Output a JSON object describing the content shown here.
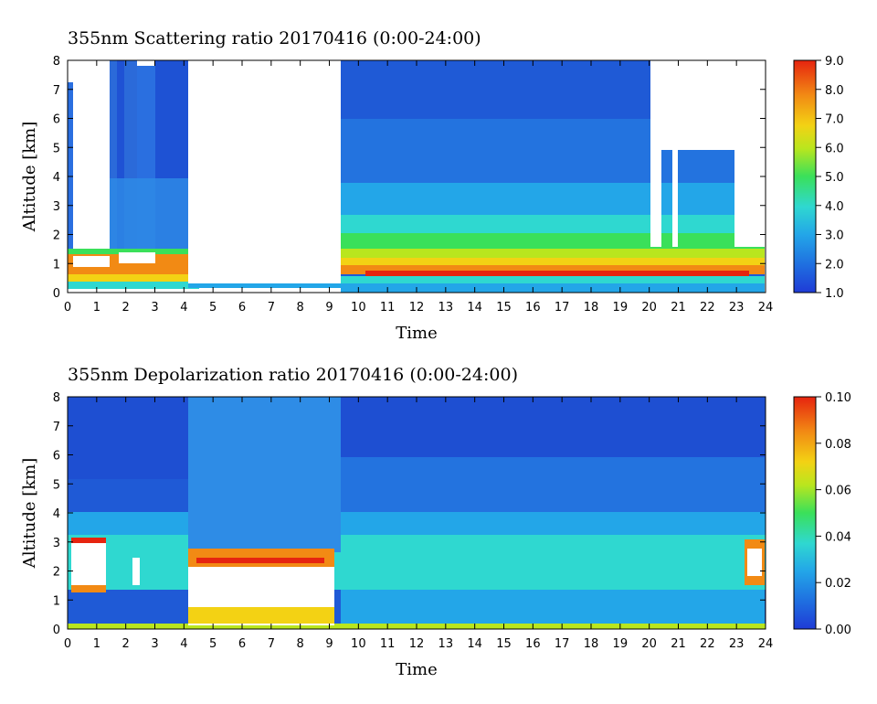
{
  "chart_data": [
    {
      "type": "heatmap",
      "title": "355nm Scattering ratio  20170416 (0:00-24:00)",
      "xlabel": "Time",
      "ylabel": "Altitude [km]",
      "xlim": [
        0,
        24
      ],
      "ylim": [
        0,
        8
      ],
      "x_ticks": [
        "0",
        "1",
        "2",
        "3",
        "4",
        "5",
        "6",
        "7",
        "8",
        "9",
        "10",
        "11",
        "12",
        "13",
        "14",
        "15",
        "16",
        "17",
        "18",
        "19",
        "20",
        "21",
        "22",
        "23",
        "24"
      ],
      "y_ticks": [
        "0",
        "1",
        "2",
        "3",
        "4",
        "5",
        "6",
        "7",
        "8"
      ],
      "colorbar": {
        "range": [
          1.0,
          9.0
        ],
        "ticks": [
          "1.0",
          "2.0",
          "3.0",
          "4.0",
          "5.0",
          "6.0",
          "7.0",
          "8.0",
          "9.0"
        ]
      },
      "no_data_periods_hours": [
        [
          0.2,
          1.4
        ],
        [
          4.4,
          9.3
        ]
      ],
      "features": {
        "boundary_layer_top_km_before_4h": 1.4,
        "boundary_layer_top_km_after_9h": 2.0,
        "clear_sky_regions_after_20h": [
          [
            20.1,
            23.5,
            5.2,
            8.0
          ]
        ]
      }
    },
    {
      "type": "heatmap",
      "title": "355nm Depolarization ratio  20170416 (0:00-24:00)",
      "xlabel": "Time",
      "ylabel": "Altitude [km]",
      "xlim": [
        0,
        24
      ],
      "ylim": [
        0,
        8
      ],
      "x_ticks": [
        "0",
        "1",
        "2",
        "3",
        "4",
        "5",
        "6",
        "7",
        "8",
        "9",
        "10",
        "11",
        "12",
        "13",
        "14",
        "15",
        "16",
        "17",
        "18",
        "19",
        "20",
        "21",
        "22",
        "23",
        "24"
      ],
      "y_ticks": [
        "0",
        "1",
        "2",
        "3",
        "4",
        "5",
        "6",
        "7",
        "8"
      ],
      "colorbar": {
        "range": [
          0.0,
          0.1
        ],
        "ticks": [
          "0.00",
          "0.02",
          "0.04",
          "0.06",
          "0.08",
          "0.10"
        ]
      },
      "features": {
        "high_depol_layer_km": [
          1.4,
          3.0
        ],
        "noisy_period_hours": [
          4.3,
          9.3
        ]
      }
    }
  ]
}
